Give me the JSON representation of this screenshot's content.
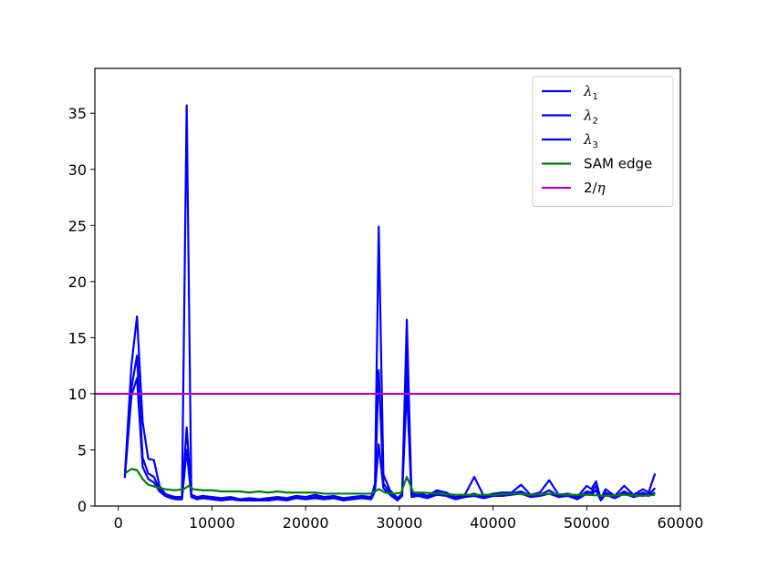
{
  "chart_data": {
    "type": "line",
    "title": "",
    "xlabel": "",
    "ylabel": "",
    "xlim": [
      -2500,
      60000
    ],
    "ylim": [
      0,
      39
    ],
    "xticks": [
      0,
      10000,
      20000,
      30000,
      40000,
      50000,
      60000
    ],
    "xtick_labels": [
      "0",
      "10000",
      "20000",
      "30000",
      "40000",
      "50000",
      "60000"
    ],
    "yticks": [
      0,
      5,
      10,
      15,
      20,
      25,
      30,
      35
    ],
    "ytick_labels": [
      "0",
      "5",
      "10",
      "15",
      "20",
      "25",
      "30",
      "35"
    ],
    "grid": false,
    "legend_position": "top-right",
    "series": [
      {
        "name": "λ1",
        "legend_symbol": "λ",
        "legend_sub": "1",
        "color": "#0000ff",
        "x": [
          700,
          1400,
          2000,
          2600,
          3200,
          3800,
          4400,
          5000,
          5600,
          6200,
          6800,
          7300,
          7800,
          8400,
          9000,
          10000,
          11000,
          12000,
          13000,
          14000,
          15000,
          16000,
          17000,
          18000,
          19000,
          20000,
          21000,
          22000,
          23000,
          24000,
          25000,
          26000,
          27000,
          27400,
          27800,
          28300,
          29000,
          29800,
          30300,
          30800,
          31300,
          32000,
          33000,
          34000,
          35000,
          36000,
          37000,
          38000,
          39000,
          40000,
          41000,
          42000,
          43000,
          44000,
          45000,
          46000,
          47000,
          48000,
          49000,
          50000,
          50500,
          51000,
          51500,
          52000,
          53000,
          54000,
          55000,
          56000,
          56600,
          57300
        ],
        "values": [
          2.7,
          12.5,
          16.9,
          7.5,
          4.2,
          4.1,
          1.8,
          1.1,
          0.9,
          0.8,
          0.8,
          35.7,
          1.0,
          0.8,
          0.9,
          0.8,
          0.7,
          0.8,
          0.6,
          0.7,
          0.6,
          0.7,
          0.8,
          0.7,
          0.9,
          0.8,
          1.0,
          0.8,
          0.9,
          0.7,
          0.8,
          0.9,
          0.8,
          2.0,
          24.9,
          2.8,
          1.4,
          0.7,
          1.1,
          16.6,
          1.0,
          1.2,
          0.9,
          1.4,
          1.2,
          0.8,
          1.0,
          2.6,
          0.9,
          1.1,
          1.2,
          1.2,
          1.9,
          1.0,
          1.2,
          2.3,
          1.0,
          1.1,
          0.8,
          1.8,
          1.5,
          2.2,
          0.6,
          1.5,
          0.9,
          1.8,
          1.0,
          1.5,
          1.2,
          2.9
        ]
      },
      {
        "name": "λ2",
        "legend_symbol": "λ",
        "legend_sub": "2",
        "color": "#0000ff",
        "x": [
          700,
          1400,
          2000,
          2600,
          3200,
          3800,
          4400,
          5000,
          5600,
          6200,
          6800,
          7300,
          7800,
          8400,
          9000,
          10000,
          11000,
          12000,
          13000,
          14000,
          15000,
          16000,
          17000,
          18000,
          19000,
          20000,
          21000,
          22000,
          23000,
          24000,
          25000,
          26000,
          27000,
          27400,
          27800,
          28300,
          29000,
          29800,
          30300,
          30800,
          31300,
          32000,
          33000,
          34000,
          35000,
          36000,
          37000,
          38000,
          39000,
          40000,
          41000,
          42000,
          43000,
          44000,
          45000,
          46000,
          47000,
          48000,
          49000,
          50000,
          50500,
          51000,
          51500,
          52000,
          53000,
          54000,
          55000,
          56000,
          56600,
          57300
        ],
        "values": [
          2.6,
          10.5,
          13.4,
          4.3,
          2.9,
          2.6,
          1.5,
          1.0,
          0.8,
          0.7,
          0.7,
          7.0,
          0.9,
          0.7,
          0.8,
          0.7,
          0.6,
          0.7,
          0.6,
          0.6,
          0.6,
          0.6,
          0.7,
          0.6,
          0.8,
          0.7,
          0.8,
          0.7,
          0.8,
          0.6,
          0.7,
          0.8,
          0.7,
          1.6,
          12.1,
          2.0,
          1.2,
          0.6,
          1.0,
          13.5,
          0.9,
          1.0,
          0.8,
          1.2,
          1.0,
          0.7,
          0.9,
          1.1,
          0.8,
          1.0,
          1.0,
          1.1,
          1.3,
          0.9,
          1.0,
          1.4,
          0.9,
          1.0,
          0.7,
          1.3,
          1.2,
          1.8,
          0.6,
          1.2,
          0.8,
          1.3,
          0.9,
          1.2,
          1.0,
          1.6
        ]
      },
      {
        "name": "λ3",
        "legend_symbol": "λ",
        "legend_sub": "3",
        "color": "#0000ff",
        "x": [
          700,
          1400,
          2000,
          2600,
          3200,
          3800,
          4400,
          5000,
          5600,
          6200,
          6800,
          7300,
          7800,
          8400,
          9000,
          10000,
          11000,
          12000,
          13000,
          14000,
          15000,
          16000,
          17000,
          18000,
          19000,
          20000,
          21000,
          22000,
          23000,
          24000,
          25000,
          26000,
          27000,
          27400,
          27800,
          28300,
          29000,
          29800,
          30300,
          30800,
          31300,
          32000,
          33000,
          34000,
          35000,
          36000,
          37000,
          38000,
          39000,
          40000,
          41000,
          42000,
          43000,
          44000,
          45000,
          46000,
          47000,
          48000,
          49000,
          50000,
          50500,
          51000,
          51500,
          52000,
          53000,
          54000,
          55000,
          56000,
          56600,
          57300
        ],
        "values": [
          2.5,
          9.8,
          11.4,
          3.5,
          2.4,
          2.1,
          1.3,
          0.9,
          0.7,
          0.6,
          0.6,
          5.0,
          0.8,
          0.6,
          0.7,
          0.6,
          0.5,
          0.6,
          0.5,
          0.5,
          0.5,
          0.5,
          0.6,
          0.5,
          0.7,
          0.6,
          0.7,
          0.6,
          0.7,
          0.5,
          0.6,
          0.7,
          0.6,
          1.3,
          5.5,
          1.6,
          1.0,
          0.5,
          0.9,
          10.6,
          0.8,
          0.9,
          0.7,
          1.0,
          0.9,
          0.6,
          0.8,
          0.9,
          0.7,
          0.9,
          0.9,
          1.0,
          1.1,
          0.8,
          0.9,
          1.1,
          0.8,
          0.9,
          0.6,
          1.1,
          1.0,
          1.4,
          0.5,
          1.0,
          0.7,
          1.1,
          0.8,
          1.0,
          0.9,
          1.2
        ]
      },
      {
        "name": "SAM edge",
        "color": "#008000",
        "x": [
          700,
          1400,
          2000,
          2600,
          3200,
          4000,
          5000,
          6000,
          7000,
          7500,
          8000,
          9000,
          10000,
          11000,
          12000,
          13000,
          14000,
          15000,
          16000,
          17000,
          18000,
          19000,
          20000,
          21000,
          22000,
          23000,
          24000,
          25000,
          26000,
          27000,
          27800,
          28500,
          29500,
          30200,
          30800,
          31500,
          32500,
          34000,
          36000,
          38000,
          40000,
          42000,
          44000,
          46000,
          48000,
          50000,
          52000,
          54000,
          56000,
          57300
        ],
        "values": [
          2.9,
          3.3,
          3.2,
          2.4,
          1.9,
          1.7,
          1.5,
          1.4,
          1.5,
          1.8,
          1.5,
          1.4,
          1.4,
          1.3,
          1.3,
          1.3,
          1.2,
          1.3,
          1.2,
          1.3,
          1.2,
          1.2,
          1.2,
          1.2,
          1.1,
          1.1,
          1.1,
          1.1,
          1.1,
          1.1,
          1.5,
          1.2,
          1.1,
          1.2,
          2.6,
          1.2,
          1.2,
          1.1,
          1.0,
          1.0,
          1.0,
          1.1,
          1.0,
          1.1,
          1.0,
          1.0,
          0.9,
          1.0,
          0.9,
          1.0
        ]
      },
      {
        "name": "2/η",
        "legend_text": "2/",
        "legend_symbol": "η",
        "color": "#bf00bf",
        "x": [
          -2500,
          60000
        ],
        "values": [
          10,
          10
        ]
      }
    ]
  }
}
